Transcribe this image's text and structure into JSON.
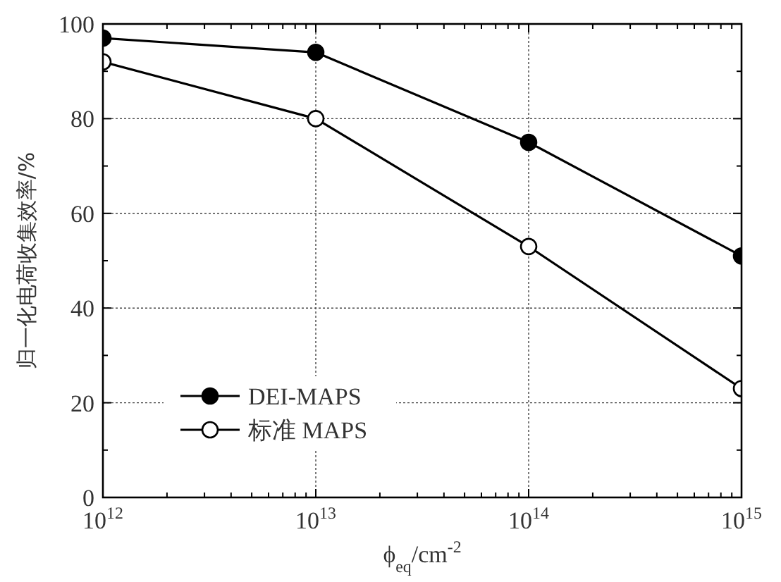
{
  "chart_data": {
    "type": "line",
    "xlabel": "ϕ$_{eq}$/cm$^{-2}$",
    "ylabel": "归一化电荷收集效率/%",
    "log": "x",
    "x": [
      1000000000000.0,
      10000000000000.0,
      100000000000000.0,
      1000000000000000.0
    ],
    "series": [
      {
        "name": "DEI-MAPS",
        "color": "#000000",
        "values": [
          97,
          94,
          75,
          51
        ]
      },
      {
        "name": "标准 MAPS",
        "color": "#000000",
        "values": [
          92,
          80,
          53,
          23
        ]
      }
    ],
    "xlim": [
      1000000000000.0,
      1000000000000000.0
    ],
    "xticks": [
      {
        "value": 1000000000000.0,
        "label": "10$^{12}$"
      },
      {
        "value": 2000000000000.0,
        "label": null
      },
      {
        "value": 3000000000000.0,
        "label": null
      },
      {
        "value": 4000000000000.0,
        "label": null
      },
      {
        "value": 5000000000000.0,
        "label": null
      },
      {
        "value": 6000000000000.0,
        "label": null
      },
      {
        "value": 7000000000000.0,
        "label": null
      },
      {
        "value": 8000000000000.0,
        "label": null
      },
      {
        "value": 9000000000000.0,
        "label": null
      },
      {
        "value": 10000000000000.0,
        "label": "10$^{13}$"
      },
      {
        "value": 20000000000000.0,
        "label": null
      },
      {
        "value": 30000000000000.0,
        "label": null
      },
      {
        "value": 40000000000000.0,
        "label": null
      },
      {
        "value": 50000000000000.0,
        "label": null
      },
      {
        "value": 60000000000000.0,
        "label": null
      },
      {
        "value": 70000000000000.0,
        "label": null
      },
      {
        "value": 80000000000000.0,
        "label": null
      },
      {
        "value": 90000000000000.0,
        "label": null
      },
      {
        "value": 100000000000000.0,
        "label": "10$^{14}$"
      },
      {
        "value": 200000000000000.0,
        "label": null
      },
      {
        "value": 300000000000000.0,
        "label": null
      },
      {
        "value": 400000000000000.0,
        "label": null
      },
      {
        "value": 500000000000000.0,
        "label": null
      },
      {
        "value": 600000000000000.0,
        "label": null
      },
      {
        "value": 700000000000000.0,
        "label": null
      },
      {
        "value": 800000000000000.0,
        "label": null
      },
      {
        "value": 900000000000000.0,
        "label": null
      },
      {
        "value": 1000000000000000.0,
        "label": "10$^{15}$"
      }
    ],
    "ylim": [
      0,
      100
    ],
    "yticks": [
      0,
      {
        "value": 10,
        "label": null
      },
      20,
      {
        "value": 30,
        "label": null
      },
      40,
      {
        "value": 50,
        "label": null
      },
      60,
      {
        "value": 70,
        "label": null
      },
      80,
      {
        "value": 90,
        "label": null
      },
      100
    ],
    "grid": true,
    "legend": "bottom left",
    "marker": "circle",
    "line_style": "solid"
  }
}
